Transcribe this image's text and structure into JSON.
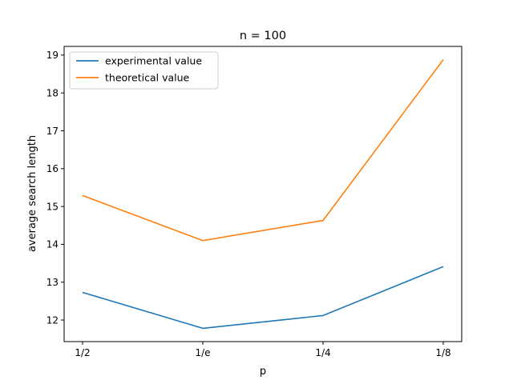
{
  "chart_data": {
    "type": "line",
    "title": "n = 100",
    "xlabel": "p",
    "ylabel": "average search length",
    "categories": [
      "1/2",
      "1/e",
      "1/4",
      "1/8"
    ],
    "series": [
      {
        "name": "experimental value",
        "color": "#1f77b4",
        "values": [
          12.73,
          11.78,
          12.12,
          13.41
        ]
      },
      {
        "name": "theoretical value",
        "color": "#ff7f0e",
        "values": [
          15.29,
          14.1,
          14.63,
          18.88
        ]
      }
    ],
    "ylim": [
      11.43,
      19.23
    ],
    "yticks": [
      12,
      13,
      14,
      15,
      16,
      17,
      18,
      19
    ],
    "grid": false,
    "legend": "top-left"
  }
}
